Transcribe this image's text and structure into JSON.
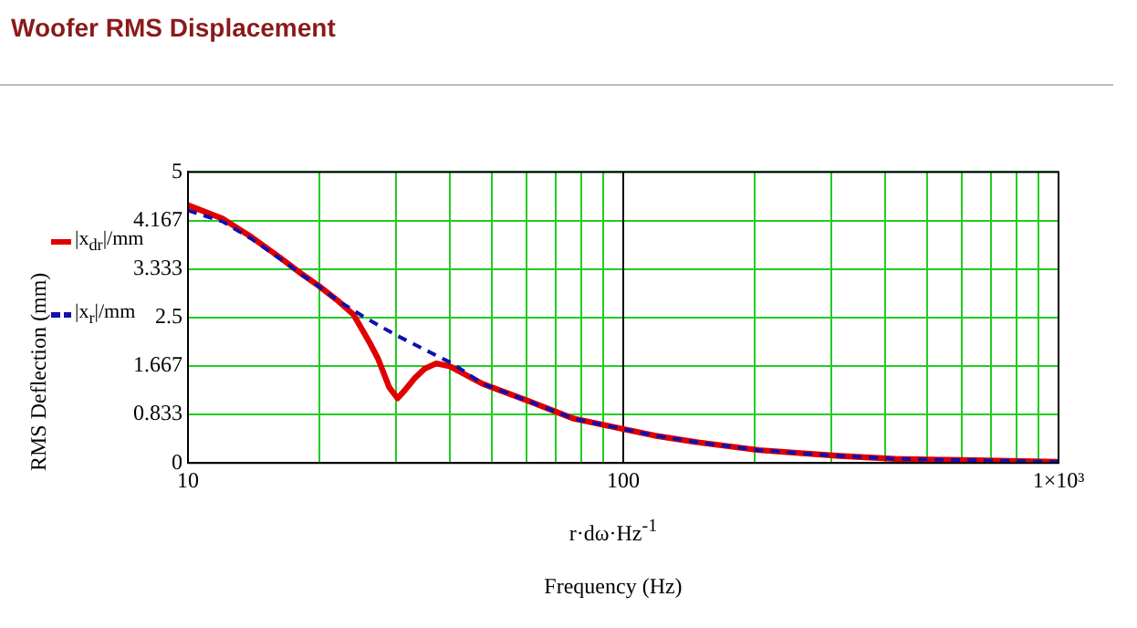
{
  "chart_data": {
    "type": "line",
    "title": "Woofer RMS Displacement",
    "ylabel": "RMS Deflection (mm)",
    "xlabel": "Frequency (Hz)",
    "annotations": [
      "r·dω·Hz$^{-1}$"
    ],
    "series": [
      {
        "name": "|x$_{dr}$|/mm",
        "color": "#e00000",
        "line_style": "solid",
        "x": [
          10,
          12,
          14,
          16.2,
          18,
          20,
          22,
          24,
          26,
          27.3,
          29,
          30.3,
          31.5,
          33.2,
          35,
          37.2,
          40,
          47.5,
          60.7,
          77,
          102,
          118,
          150,
          205,
          314,
          422,
          600,
          730,
          1000
        ],
        "values": [
          4.43,
          4.2,
          3.88,
          3.54,
          3.28,
          3.04,
          2.8,
          2.55,
          2.1,
          1.8,
          1.3,
          1.11,
          1.25,
          1.46,
          1.62,
          1.71,
          1.66,
          1.36,
          1.06,
          0.76,
          0.57,
          0.47,
          0.35,
          0.22,
          0.12,
          0.07,
          0.05,
          0.04,
          0.02
        ]
      },
      {
        "name": "|x$_{r}$|/mm",
        "color": "#1010b0",
        "line_style": "dashed",
        "x": [
          10,
          12,
          14,
          16.2,
          18,
          20,
          22,
          25.5,
          30,
          36,
          40.5,
          47.5,
          60.7,
          77,
          102,
          118,
          150,
          205,
          314,
          422,
          600,
          730,
          1000
        ],
        "values": [
          4.34,
          4.15,
          3.85,
          3.52,
          3.27,
          3.03,
          2.8,
          2.5,
          2.2,
          1.9,
          1.71,
          1.36,
          1.06,
          0.76,
          0.57,
          0.47,
          0.35,
          0.22,
          0.12,
          0.07,
          0.05,
          0.04,
          0.02
        ]
      }
    ],
    "xlim": [
      10,
      1000
    ],
    "xticks": [
      10,
      {
        "value": 20,
        "label": null
      },
      {
        "value": 30,
        "label": null
      },
      {
        "value": 40,
        "label": null
      },
      {
        "value": 50,
        "label": null
      },
      {
        "value": 60,
        "label": null
      },
      {
        "value": 70,
        "label": null
      },
      {
        "value": 80,
        "label": null
      },
      {
        "value": 90,
        "label": null
      },
      100,
      {
        "value": 200,
        "label": null
      },
      {
        "value": 300,
        "label": null
      },
      {
        "value": 400,
        "label": null
      },
      {
        "value": 500,
        "label": null
      },
      {
        "value": 600,
        "label": null
      },
      {
        "value": 700,
        "label": null
      },
      {
        "value": 800,
        "label": null
      },
      {
        "value": 900,
        "label": null
      },
      {
        "value": 1000,
        "label": "1×10³"
      }
    ],
    "ylim": [
      0,
      5
    ],
    "yticks": [
      0,
      0.833,
      1.667,
      2.5,
      3.333,
      4.167,
      5
    ],
    "ref_lines": [
      {
        "axis": "x",
        "value": 100,
        "color": "#000000"
      }
    ],
    "log": "x",
    "grid": true,
    "legend": "left",
    "marker": "none"
  }
}
